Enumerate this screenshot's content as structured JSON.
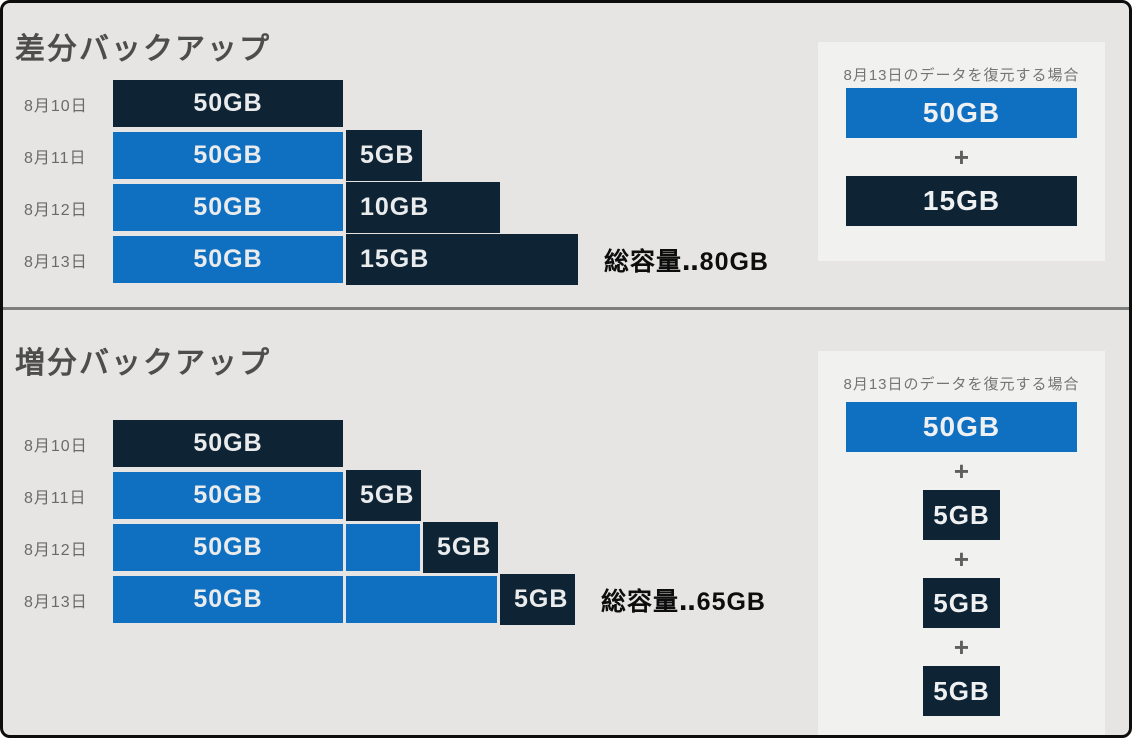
{
  "colors": {
    "background": "#e6e5e3",
    "panel_background": "#f1f1ef",
    "blue": "#0f70c2",
    "dark_navy": "#0e2435",
    "bar_text": "#e9ebec",
    "divider": "#7e7e7e",
    "title_text": "#4d4d4d"
  },
  "differential": {
    "title": "差分バックアップ",
    "rows": [
      {
        "date": "8月10日",
        "full": "50GB",
        "full_gb": 50
      },
      {
        "date": "8月11日",
        "full": "50GB",
        "full_gb": 50,
        "ext": "5GB",
        "ext_gb": 5
      },
      {
        "date": "8月12日",
        "full": "50GB",
        "full_gb": 50,
        "ext": "10GB",
        "ext_gb": 10
      },
      {
        "date": "8月13日",
        "full": "50GB",
        "full_gb": 50,
        "ext": "15GB",
        "ext_gb": 15
      }
    ],
    "total": "総容量‥80GB",
    "total_gb": 80,
    "restore": {
      "title": "8月13日のデータを復元する場合",
      "plus": "+",
      "blocks": [
        {
          "label": "50GB",
          "color": "blue"
        },
        {
          "label": "15GB",
          "color": "dark"
        }
      ]
    }
  },
  "incremental": {
    "title": "増分バックアップ",
    "rows": [
      {
        "date": "8月10日",
        "full": "50GB",
        "full_gb": 50
      },
      {
        "date": "8月11日",
        "full": "50GB",
        "full_gb": 50,
        "ext": "5GB",
        "ext_gb": 5
      },
      {
        "date": "8月12日",
        "full": "50GB",
        "full_gb": 50,
        "ext": "5GB",
        "ext_gb": 5
      },
      {
        "date": "8月13日",
        "full": "50GB",
        "full_gb": 50,
        "ext": "5GB",
        "ext_gb": 5
      }
    ],
    "total": "総容量‥65GB",
    "total_gb": 65,
    "restore": {
      "title": "8月13日のデータを復元する場合",
      "plus": "+",
      "blocks": [
        {
          "label": "50GB",
          "color": "blue"
        },
        {
          "label": "5GB",
          "color": "dark"
        },
        {
          "label": "5GB",
          "color": "dark"
        },
        {
          "label": "5GB",
          "color": "dark"
        }
      ]
    }
  }
}
